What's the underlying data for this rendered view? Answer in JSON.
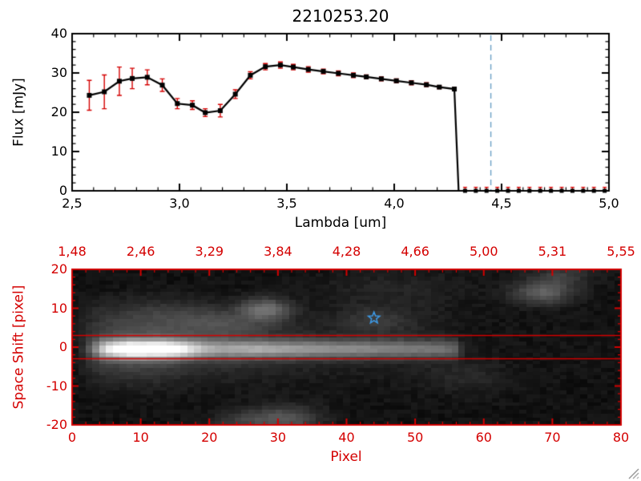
{
  "colors": {
    "axis_black": "#000000",
    "red": "#d40000",
    "dashed_line": "#6a9fc5",
    "star": "#3d9be9",
    "background": "#ffffff"
  },
  "chart_data": [
    {
      "type": "line",
      "title": "2210253.20",
      "xlabel": "Lambda [um]",
      "ylabel": "Flux [mJy]",
      "xlim": [
        2.5,
        5.0
      ],
      "ylim": [
        0,
        40
      ],
      "x_ticks": [
        2.5,
        3.0,
        3.5,
        4.0,
        4.5,
        5.0
      ],
      "x_tick_labels": [
        "2,5",
        "3,0",
        "3,5",
        "4,0",
        "4,5",
        "5,0"
      ],
      "y_ticks": [
        0,
        10,
        20,
        30,
        40
      ],
      "y_tick_labels": [
        "0",
        "10",
        "20",
        "30",
        "40"
      ],
      "x": [
        2.58,
        2.65,
        2.72,
        2.78,
        2.85,
        2.92,
        2.99,
        3.06,
        3.12,
        3.19,
        3.26,
        3.33,
        3.4,
        3.47,
        3.53,
        3.6,
        3.67,
        3.74,
        3.81,
        3.87,
        3.94,
        4.01,
        4.08,
        4.15,
        4.21,
        4.28
      ],
      "y": [
        24.3,
        25.2,
        27.9,
        28.6,
        28.9,
        26.9,
        22.2,
        21.8,
        19.9,
        20.4,
        24.6,
        29.4,
        31.6,
        32.0,
        31.5,
        30.9,
        30.4,
        29.9,
        29.4,
        29.0,
        28.5,
        28.0,
        27.5,
        27.0,
        26.4,
        25.9
      ],
      "yerr": [
        3.8,
        4.3,
        3.6,
        2.6,
        1.9,
        1.6,
        1.3,
        1.1,
        1.0,
        1.6,
        1.1,
        0.9,
        0.8,
        0.8,
        0.7,
        0.7,
        0.6,
        0.6,
        0.6,
        0.5,
        0.5,
        0.5,
        0.5,
        0.5,
        0.4,
        0.4
      ],
      "drop_to_zero_x": 4.3,
      "zero_tail_x": [
        4.33,
        4.38,
        4.43,
        4.48,
        4.53,
        4.58,
        4.63,
        4.68,
        4.73,
        4.78,
        4.83,
        4.88,
        4.93,
        4.98
      ],
      "zero_tail_err": 0.9,
      "vline_x": 4.45,
      "marker": "filled-square",
      "grid": false
    },
    {
      "type": "heatmap",
      "xlabel": "Pixel",
      "ylabel": "Space Shift [pixel]",
      "xlim": [
        0,
        80
      ],
      "ylim": [
        -20,
        20
      ],
      "x_ticks": [
        0,
        10,
        20,
        30,
        40,
        50,
        60,
        70,
        80
      ],
      "x_tick_labels": [
        "0",
        "10",
        "20",
        "30",
        "40",
        "50",
        "60",
        "70",
        "80"
      ],
      "y_ticks": [
        -20,
        -10,
        0,
        10,
        20
      ],
      "y_tick_labels": [
        "-20",
        "-10",
        "0",
        "10",
        "20"
      ],
      "top_axis_labels": [
        "1,48",
        "2,46",
        "3,29",
        "3,84",
        "4,28",
        "4,66",
        "5,00",
        "5,31",
        "5,55"
      ],
      "aperture_lines_y": [
        3.0,
        -3.0
      ],
      "star": {
        "x": 44,
        "y": 7.5
      },
      "trace": {
        "center_y": -0.5,
        "core_sigma": 1.6,
        "halo_sigma": 5.5,
        "core_profile": [
          [
            0,
            0
          ],
          [
            1,
            0.02
          ],
          [
            2,
            0.12
          ],
          [
            3,
            0.3
          ],
          [
            4,
            0.55
          ],
          [
            5,
            0.72
          ],
          [
            6,
            0.82
          ],
          [
            7,
            0.92
          ],
          [
            8,
            1.0
          ],
          [
            13,
            1.0
          ],
          [
            15,
            0.88
          ],
          [
            17,
            0.68
          ],
          [
            19,
            0.52
          ],
          [
            21,
            0.44
          ],
          [
            24,
            0.46
          ],
          [
            27,
            0.5
          ],
          [
            30,
            0.47
          ],
          [
            33,
            0.44
          ],
          [
            36,
            0.42
          ],
          [
            39,
            0.4
          ],
          [
            42,
            0.38
          ],
          [
            45,
            0.37
          ],
          [
            48,
            0.35
          ],
          [
            51,
            0.32
          ],
          [
            54,
            0.3
          ],
          [
            56,
            0.24
          ],
          [
            57,
            0.08
          ],
          [
            58,
            0.01
          ],
          [
            60,
            0
          ],
          [
            80,
            0
          ]
        ],
        "halo_profile": [
          [
            0,
            0.02
          ],
          [
            2,
            0.1
          ],
          [
            4,
            0.18
          ],
          [
            8,
            0.22
          ],
          [
            12,
            0.21
          ],
          [
            16,
            0.16
          ],
          [
            20,
            0.12
          ],
          [
            25,
            0.1
          ],
          [
            30,
            0.08
          ],
          [
            36,
            0.06
          ],
          [
            42,
            0.05
          ],
          [
            48,
            0.045
          ],
          [
            54,
            0.04
          ],
          [
            57,
            0.015
          ],
          [
            60,
            0.008
          ],
          [
            80,
            0.005
          ]
        ]
      },
      "blobs": [
        {
          "x": 13,
          "y": 8.5,
          "sx": 7,
          "sy": 3,
          "a": 0.1
        },
        {
          "x": 22,
          "y": 6,
          "sx": 5,
          "sy": 2.5,
          "a": 0.12
        },
        {
          "x": 28,
          "y": 10,
          "sx": 2.5,
          "sy": 2,
          "a": 0.3
        },
        {
          "x": 31,
          "y": -19,
          "sx": 3.5,
          "sy": 2.5,
          "a": 0.22
        },
        {
          "x": 24.5,
          "y": -19.5,
          "sx": 3,
          "sy": 2,
          "a": 0.12
        },
        {
          "x": 44.5,
          "y": 7,
          "sx": 4,
          "sy": 2.5,
          "a": 0.1
        },
        {
          "x": 69,
          "y": 14.5,
          "sx": 3,
          "sy": 2.2,
          "a": 0.26
        },
        {
          "x": 72,
          "y": 19,
          "sx": 3,
          "sy": 2,
          "a": 0.12
        },
        {
          "x": 47,
          "y": 15,
          "sx": 8,
          "sy": 4,
          "a": 0.05
        },
        {
          "x": 58,
          "y": -8,
          "sx": 4,
          "sy": 3,
          "a": 0.06
        }
      ],
      "noise": 0.04
    }
  ]
}
